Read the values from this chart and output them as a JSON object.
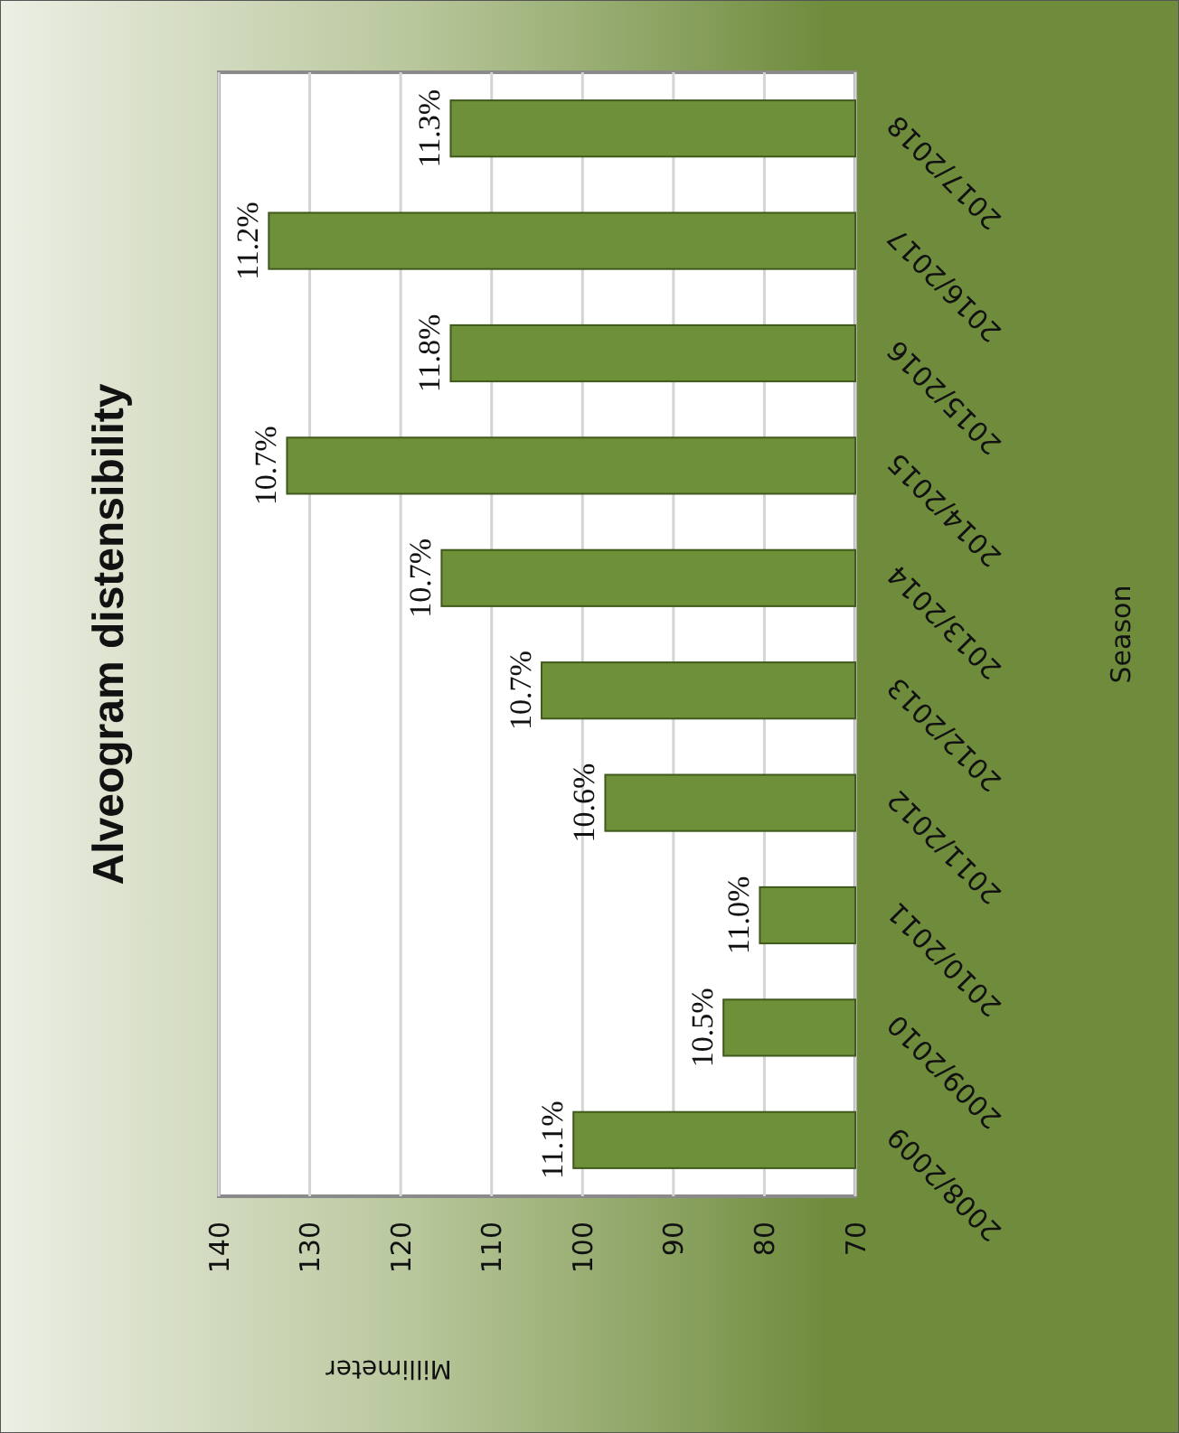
{
  "chart_data": {
    "type": "bar",
    "orientation": "horizontal",
    "title": "Alveogram distensibility",
    "xlabel": "Millimeter",
    "ylabel": "Season",
    "categories": [
      "2017/2018",
      "2016/2017",
      "2015/2016",
      "2014/2015",
      "2013/2014",
      "2012/2013",
      "2011/2012",
      "2010/2011",
      "2009/2010",
      "2008/2009"
    ],
    "values": [
      114.5,
      134.5,
      114.5,
      132.5,
      115.5,
      104.5,
      97.5,
      80.5,
      84.5,
      101
    ],
    "color": "#6e9038",
    "xlim": [
      140,
      70
    ],
    "xticks": [
      140,
      130,
      120,
      110,
      100,
      90,
      80,
      70
    ],
    "grid": "x",
    "annotations": [
      "11.3%",
      "11.2%",
      "11.8%",
      "10.7%",
      "10.7%",
      "10.7%",
      "10.6%",
      "11.0%",
      "10.5%",
      "11.1%"
    ]
  }
}
